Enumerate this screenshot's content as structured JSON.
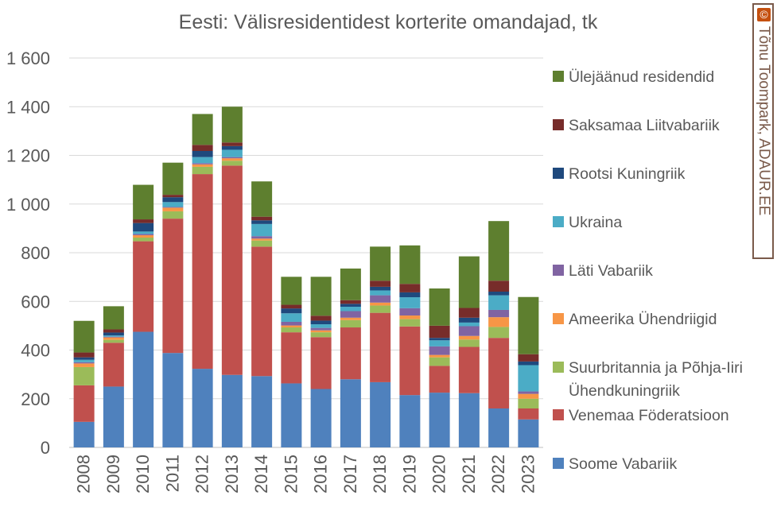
{
  "chart_data": {
    "type": "bar",
    "stacked": true,
    "title": "Eesti: Välisresidentidest korterite omandajad, tk",
    "xlabel": "",
    "ylabel": "",
    "ylim": [
      0,
      1600
    ],
    "ytick_values": [
      0,
      200,
      400,
      600,
      800,
      1000,
      1200,
      1400,
      1600
    ],
    "ytick_labels": [
      "0",
      "200",
      "400",
      "600",
      "800",
      "1 000",
      "1 200",
      "1 400",
      "1 600"
    ],
    "grid": true,
    "legend_position": "right",
    "categories": [
      "2008",
      "2009",
      "2010",
      "2011",
      "2012",
      "2013",
      "2014",
      "2015",
      "2016",
      "2017",
      "2018",
      "2019",
      "2020",
      "2021",
      "2022",
      "2023"
    ],
    "series": [
      {
        "name": "Soome Vabariik",
        "color": "#4f81bd",
        "values": [
          105,
          250,
          475,
          388,
          323,
          298,
          293,
          263,
          240,
          280,
          268,
          215,
          225,
          223,
          160,
          115
        ]
      },
      {
        "name": "Venemaa Föderatsioon",
        "color": "#c0504d",
        "values": [
          150,
          180,
          372,
          552,
          800,
          860,
          532,
          210,
          213,
          213,
          285,
          282,
          110,
          190,
          290,
          45
        ]
      },
      {
        "name": "Suurbritannia ja Põhja-Iiri Ühendkuningriik",
        "color": "#9bbb59",
        "values": [
          75,
          12,
          15,
          30,
          30,
          20,
          25,
          20,
          20,
          30,
          30,
          30,
          35,
          30,
          45,
          40
        ]
      },
      {
        "name": "Ameerika Ühendriigid",
        "color": "#f79646",
        "values": [
          15,
          10,
          10,
          15,
          10,
          10,
          8,
          8,
          8,
          10,
          12,
          15,
          10,
          15,
          40,
          20
        ]
      },
      {
        "name": "Läti Vabariik",
        "color": "#8064a2",
        "values": [
          5,
          3,
          5,
          3,
          5,
          5,
          10,
          15,
          10,
          27,
          30,
          30,
          35,
          40,
          30,
          10
        ]
      },
      {
        "name": "Ukraina",
        "color": "#4bacc6",
        "values": [
          10,
          5,
          10,
          20,
          25,
          30,
          50,
          35,
          15,
          18,
          20,
          45,
          25,
          15,
          60,
          108
        ]
      },
      {
        "name": "Rootsi Kuningriik",
        "color": "#1f497d",
        "values": [
          10,
          12,
          35,
          20,
          25,
          15,
          15,
          20,
          15,
          12,
          15,
          20,
          10,
          20,
          15,
          15
        ]
      },
      {
        "name": "Saksamaa Liitvabariik",
        "color": "#772c2a",
        "values": [
          20,
          13,
          15,
          10,
          25,
          15,
          15,
          15,
          20,
          15,
          25,
          35,
          50,
          40,
          45,
          30
        ]
      },
      {
        "name": "Ülejäänud residendid",
        "color": "#5e7f2f",
        "values": [
          130,
          95,
          142,
          132,
          127,
          147,
          145,
          115,
          160,
          130,
          140,
          158,
          153,
          212,
          245,
          235
        ]
      }
    ]
  },
  "credit": {
    "mark": "©",
    "text": "Tõnu Toompark, ADAUR.EE"
  }
}
